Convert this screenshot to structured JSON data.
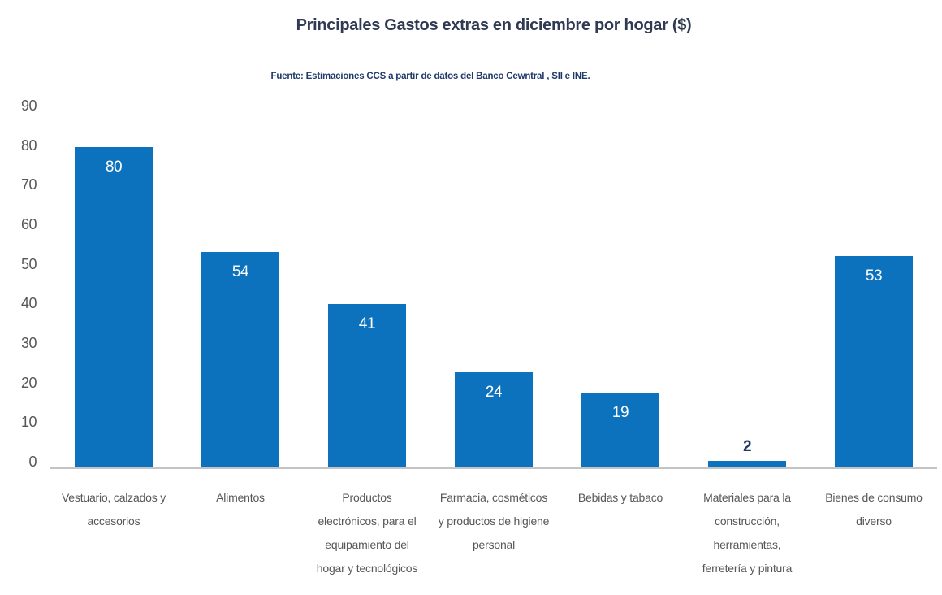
{
  "chart_data": {
    "type": "bar",
    "title": "Principales Gastos extras en diciembre por hogar ($)",
    "source_note": "Fuente: Estimaciones CCS a partir de datos del Banco Cewntral , SII e INE.",
    "categories": [
      "Vestuario, calzados y accesorios",
      "Alimentos",
      "Productos electrónicos, para el equipamiento del hogar y tecnológicos",
      "Farmacia, cosméticos y productos de higiene personal",
      "Bebidas y tabaco",
      "Materiales para la construcción, herramientas, ferretería y pintura",
      "Bienes de consumo diverso"
    ],
    "categories_lines": [
      [
        "Vestuario, calzados y",
        "accesorios"
      ],
      [
        "Alimentos"
      ],
      [
        "Productos",
        "electrónicos, para el",
        "equipamiento del",
        "hogar y tecnológicos"
      ],
      [
        "Farmacia, cosméticos",
        "y productos de higiene",
        "personal"
      ],
      [
        "Bebidas y tabaco"
      ],
      [
        "Materiales para la",
        "construcción,",
        "herramientas,",
        "ferretería y pintura"
      ],
      [
        "Bienes de consumo",
        "diverso"
      ]
    ],
    "values": [
      80,
      54,
      41,
      24,
      19,
      2,
      53
    ],
    "value_label_position": [
      "inside",
      "inside",
      "inside",
      "inside",
      "inside",
      "above",
      "inside"
    ],
    "yticks": [
      0,
      10,
      20,
      30,
      40,
      50,
      60,
      70,
      80,
      90
    ],
    "ylim": [
      0,
      90
    ],
    "xlabel": "",
    "ylabel": "",
    "grid": false,
    "legend": false
  },
  "colors": {
    "bar": "#0D72BE",
    "title_text": "#303A52",
    "subtitle_text": "#203A69",
    "value_label_inside": "#FFFFFF",
    "value_label_above": "#1F3864",
    "axis_text": "#575757",
    "axis_line": "#C4C4C4"
  }
}
